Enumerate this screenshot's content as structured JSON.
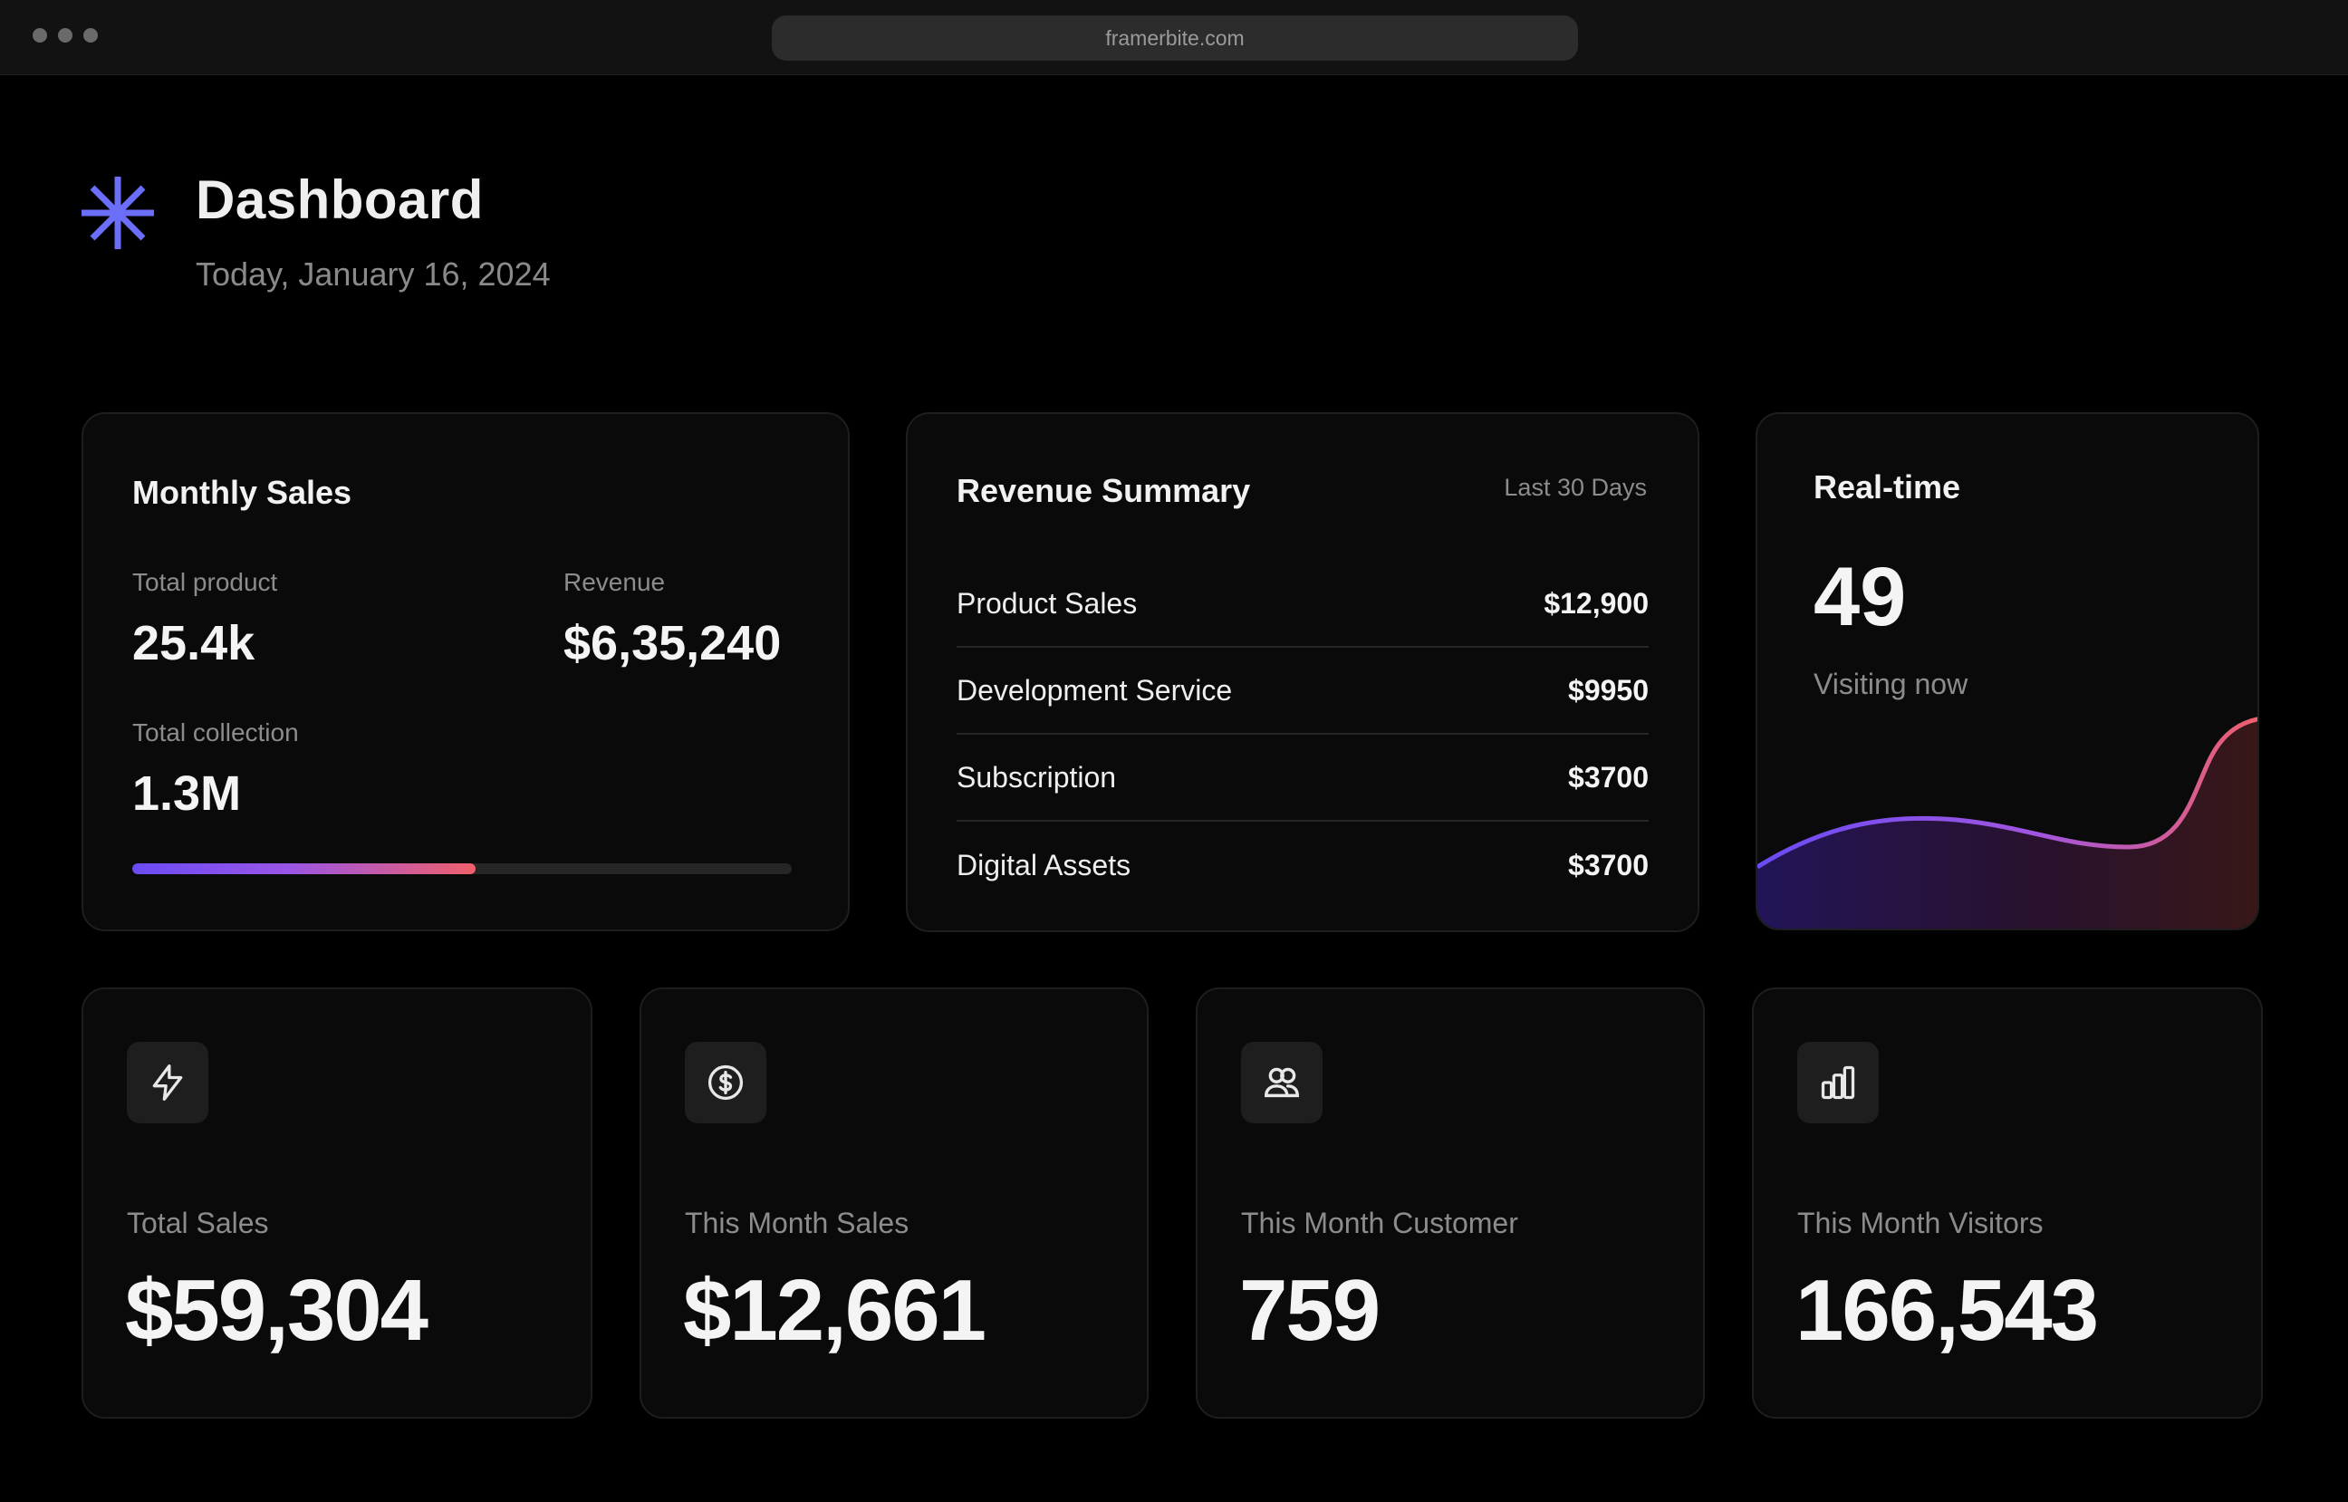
{
  "browser": {
    "url": "framerbite.com"
  },
  "header": {
    "icon": "asterisk-logo-icon",
    "title": "Dashboard",
    "date": "Today, January 16, 2024",
    "accent_color": "#6b6ef9"
  },
  "monthly_sales": {
    "title": "Monthly Sales",
    "total_product_label": "Total product",
    "total_product_value": "25.4k",
    "revenue_label": "Revenue",
    "revenue_value": "$6,35,240",
    "total_collection_label": "Total collection",
    "total_collection_value": "1.3M",
    "progress_fraction": 0.52
  },
  "revenue_summary": {
    "title": "Revenue Summary",
    "range": "Last 30 Days",
    "rows": [
      {
        "name": "Product Sales",
        "amount": "$12,900"
      },
      {
        "name": "Development Service",
        "amount": "$9950"
      },
      {
        "name": "Subscription",
        "amount": "$3700"
      },
      {
        "name": "Digital Assets",
        "amount": "$3700"
      }
    ]
  },
  "realtime": {
    "title": "Real-time",
    "value": "49",
    "caption": "Visiting now",
    "line_colors": [
      "#6a4cf5",
      "#a155e0",
      "#f0606a"
    ]
  },
  "stats": [
    {
      "icon": "lightning-icon",
      "label": "Total Sales",
      "value": "$59,304"
    },
    {
      "icon": "dollar-circle-icon",
      "label": "This Month Sales",
      "value": "$12,661"
    },
    {
      "icon": "users-icon",
      "label": "This Month Customer",
      "value": "759"
    },
    {
      "icon": "bar-chart-icon",
      "label": "This Month Visitors",
      "value": "166,543"
    }
  ]
}
